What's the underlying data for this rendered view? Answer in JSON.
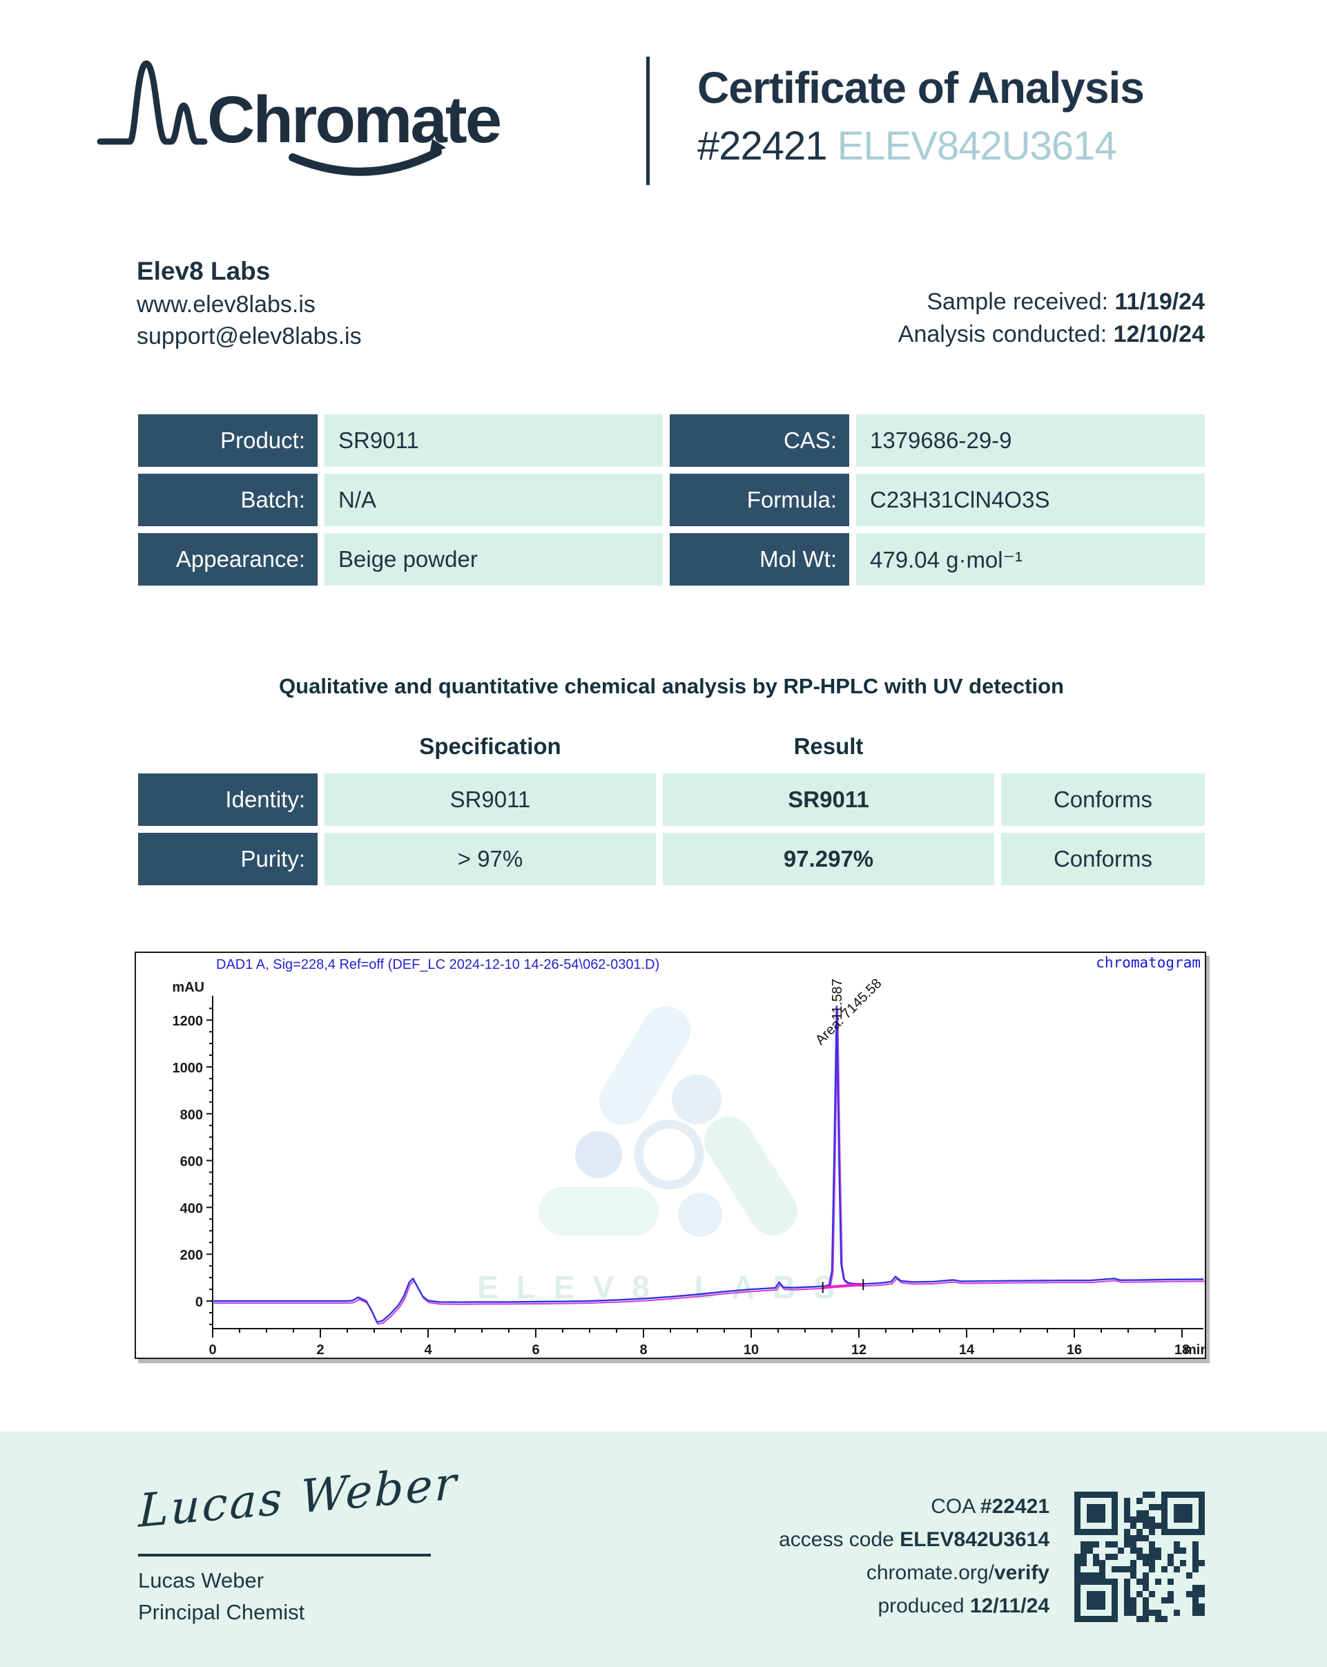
{
  "header": {
    "logo_text": "Chromate",
    "title": "Certificate of Analysis",
    "coa_number": "#22421",
    "access_code": "ELEV842U3614"
  },
  "company": {
    "name": "Elev8 Labs",
    "website": "www.elev8labs.is",
    "email": "support@elev8labs.is"
  },
  "dates": {
    "received_label": "Sample received: ",
    "received": "11/19/24",
    "conducted_label": "Analysis conducted: ",
    "conducted": "12/10/24"
  },
  "product_table": {
    "rows": [
      {
        "label": "Product:",
        "value": "SR9011"
      },
      {
        "label": "CAS:",
        "value": "1379686-29-9"
      },
      {
        "label": "Batch:",
        "value": "N/A"
      },
      {
        "label": "Formula:",
        "value": "C23H31ClN4O3S"
      },
      {
        "label": "Appearance:",
        "value": "Beige powder"
      },
      {
        "label": "Mol Wt:",
        "value": "479.04 g·mol⁻¹"
      }
    ]
  },
  "method_note": "Qualitative and quantitative chemical analysis by RP-HPLC with UV detection",
  "spec_table": {
    "spec_header": "Specification",
    "result_header": "Result",
    "rows": [
      {
        "label": "Identity:",
        "spec": "SR9011",
        "result": "SR9011",
        "status": "Conforms"
      },
      {
        "label": "Purity:",
        "spec": "> 97%",
        "result": "97.297%",
        "status": "Conforms"
      }
    ]
  },
  "chart_data": {
    "type": "line",
    "title": "DAD1 A, Sig=228,4 Ref=off (DEF_LC 2024-12-10 14-26-54\\062-0301.D)",
    "corner_label": "chromatogram",
    "ylabel": "mAU",
    "xlabel": "min",
    "xlim": [
      0,
      18.4
    ],
    "ylim": [
      -120,
      1300
    ],
    "x_ticks": [
      0,
      2,
      4,
      6,
      8,
      10,
      12,
      14,
      16,
      18
    ],
    "y_ticks": [
      0,
      200,
      400,
      600,
      800,
      1000,
      1200
    ],
    "grid": false,
    "watermark_text": "ELEV8 LABS",
    "trace_color": "#3431e4",
    "secondary_trace_color": "#c32bd6",
    "peak": {
      "retention_time": 11.587,
      "rt_label": "11.587",
      "area": 7145.58,
      "area_label": "Area: 7145.58",
      "height_mau": 1258
    },
    "integration": {
      "start_min": 11.33,
      "end_min": 12.08
    },
    "trace": [
      [
        0,
        0
      ],
      [
        0.5,
        0
      ],
      [
        1,
        0
      ],
      [
        1.5,
        0
      ],
      [
        2,
        0
      ],
      [
        2.5,
        0
      ],
      [
        2.6,
        2
      ],
      [
        2.7,
        16
      ],
      [
        2.78,
        8
      ],
      [
        2.85,
        0
      ],
      [
        2.95,
        -40
      ],
      [
        3.05,
        -90
      ],
      [
        3.15,
        -85
      ],
      [
        3.3,
        -55
      ],
      [
        3.45,
        -18
      ],
      [
        3.55,
        20
      ],
      [
        3.65,
        80
      ],
      [
        3.72,
        96
      ],
      [
        3.8,
        62
      ],
      [
        3.9,
        20
      ],
      [
        4.0,
        2
      ],
      [
        4.2,
        -4
      ],
      [
        4.6,
        -5
      ],
      [
        5.0,
        -4
      ],
      [
        5.5,
        -4
      ],
      [
        6.0,
        -3
      ],
      [
        6.5,
        -2
      ],
      [
        7.0,
        0
      ],
      [
        7.5,
        4
      ],
      [
        8.0,
        10
      ],
      [
        8.5,
        18
      ],
      [
        9.0,
        28
      ],
      [
        9.5,
        40
      ],
      [
        10.0,
        50
      ],
      [
        10.3,
        54
      ],
      [
        10.45,
        56
      ],
      [
        10.52,
        80
      ],
      [
        10.6,
        58
      ],
      [
        10.8,
        57
      ],
      [
        11.0,
        59
      ],
      [
        11.2,
        61
      ],
      [
        11.35,
        63
      ],
      [
        11.45,
        68
      ],
      [
        11.5,
        130
      ],
      [
        11.54,
        600
      ],
      [
        11.587,
        1258
      ],
      [
        11.63,
        620
      ],
      [
        11.67,
        160
      ],
      [
        11.72,
        92
      ],
      [
        11.8,
        78
      ],
      [
        11.9,
        74
      ],
      [
        12.1,
        73
      ],
      [
        12.4,
        77
      ],
      [
        12.6,
        82
      ],
      [
        12.68,
        104
      ],
      [
        12.78,
        86
      ],
      [
        13.0,
        81
      ],
      [
        13.4,
        83
      ],
      [
        13.75,
        90
      ],
      [
        13.9,
        84
      ],
      [
        14.3,
        85
      ],
      [
        14.8,
        86
      ],
      [
        15.3,
        87
      ],
      [
        15.8,
        88
      ],
      [
        16.3,
        88
      ],
      [
        16.75,
        96
      ],
      [
        16.85,
        89
      ],
      [
        17.3,
        90
      ],
      [
        17.8,
        92
      ],
      [
        18.4,
        93
      ]
    ]
  },
  "footer": {
    "signature": "Lucas Weber",
    "signer_name": "Lucas Weber",
    "signer_title": "Principal Chemist",
    "coa_label": "COA ",
    "coa_number": "#22421",
    "access_label": "access code ",
    "access_code": "ELEV842U3614",
    "verify_prefix": "chromate.org/",
    "verify_bold": "verify",
    "produced_label": "produced ",
    "produced_date": "12/11/24"
  }
}
